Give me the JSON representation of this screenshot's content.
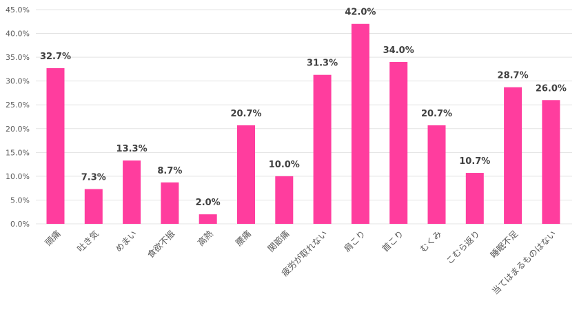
{
  "chart_data": {
    "type": "bar",
    "title": "",
    "xlabel": "",
    "ylabel": "",
    "ylim": [
      0,
      45
    ],
    "y_ticks": [
      "0.0%",
      "5.0%",
      "10.0%",
      "15.0%",
      "20.0%",
      "25.0%",
      "30.0%",
      "35.0%",
      "40.0%",
      "45.0%"
    ],
    "grid": true,
    "bar_color": "#ff3d9e",
    "categories": [
      "頭痛",
      "吐き気",
      "めまい",
      "食欲不振",
      "高熱",
      "腰痛",
      "関節痛",
      "疲労が取れない",
      "肩こり",
      "首こり",
      "むくみ",
      "こむら返り",
      "睡眠不足",
      "当てはまるものはない"
    ],
    "values": [
      32.7,
      7.3,
      13.3,
      8.7,
      2.0,
      20.7,
      10.0,
      31.3,
      42.0,
      34.0,
      20.7,
      10.7,
      28.7,
      26.0
    ],
    "data_labels": [
      "32.7%",
      "7.3%",
      "13.3%",
      "8.7%",
      "2.0%",
      "20.7%",
      "10.0%",
      "31.3%",
      "42.0%",
      "34.0%",
      "20.7%",
      "10.7%",
      "28.7%",
      "26.0%"
    ]
  }
}
